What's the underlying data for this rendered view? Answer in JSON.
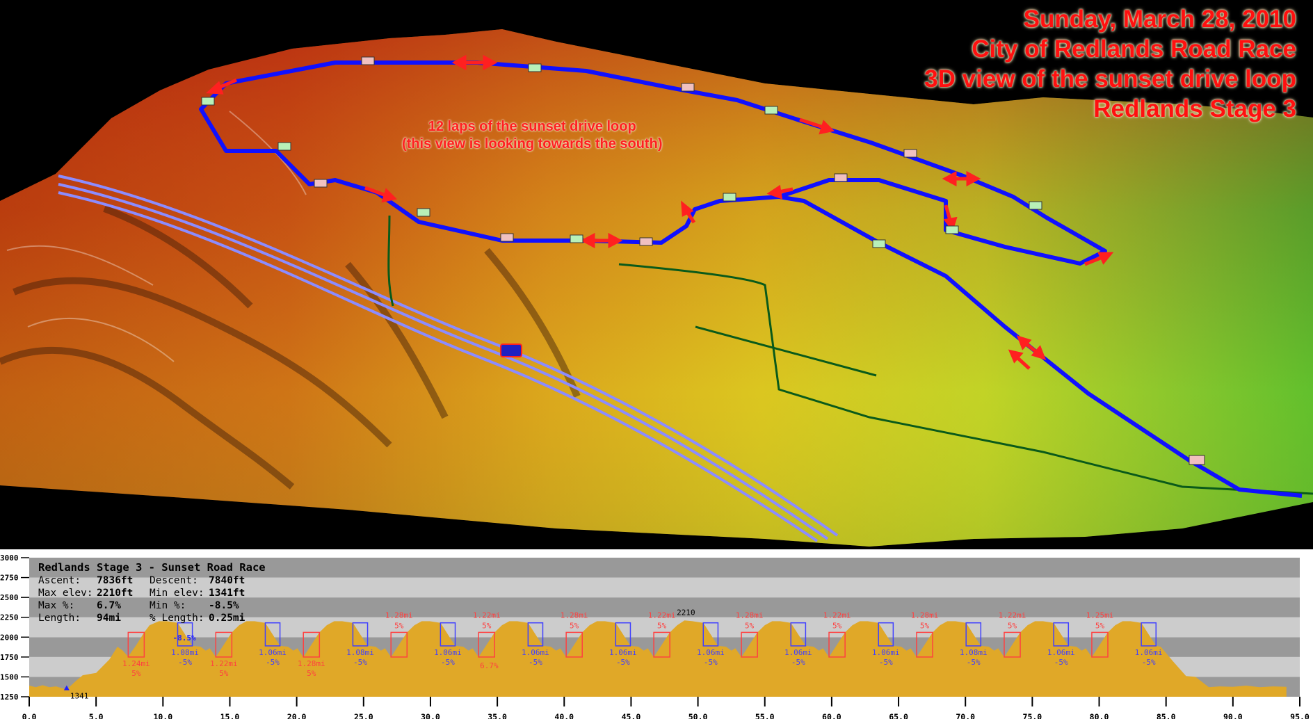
{
  "map": {
    "title_lines": [
      "Sunday, March 28, 2010",
      "City of Redlands Road Race",
      "3D view of the sunset drive loop",
      "Redlands Stage 3"
    ],
    "annotation_lines": [
      "12 laps of the sunset drive loop",
      "(this view is looking towards the south)"
    ],
    "colors": {
      "title": "#ff1010",
      "route": "#1010ff",
      "arrows": "#ff2020",
      "freeway": "#8c8cff",
      "boundary": "#0a5a1a"
    }
  },
  "info": {
    "title": "Redlands Stage 3 - Sunset Road Race",
    "rows": [
      {
        "l1": "Ascent:",
        "v1": "7836ft",
        "l2": "Descent:",
        "v2": "7840ft"
      },
      {
        "l1": "Max elev:",
        "v1": "2210ft",
        "l2": "Min elev:",
        "v2": "1341ft"
      },
      {
        "l1": "Max %:",
        "v1": "6.7%",
        "l2": "Min %:",
        "v2": "-8.5%"
      },
      {
        "l1": "Length:",
        "v1": "94mi",
        "l2": "% Length:",
        "v2": "0.25mi"
      }
    ]
  },
  "chart_data": {
    "type": "area",
    "xlim": [
      0,
      95
    ],
    "ylim": [
      1250,
      3000
    ],
    "xticks": [
      "0.0",
      "5.0",
      "10.0",
      "15.0",
      "20.0",
      "25.0",
      "30.0",
      "35.0",
      "40.0",
      "45.0",
      "50.0",
      "55.0",
      "60.0",
      "65.0",
      "70.0",
      "75.0",
      "80.0",
      "85.0",
      "90.0",
      "95.0"
    ],
    "yticks": [
      "1250",
      "1500",
      "1750",
      "2000",
      "2250",
      "2500",
      "2750",
      "3000"
    ],
    "grid_bands": true,
    "colors": {
      "fill": "#e0a828",
      "band_dark": "#999999",
      "band_light": "#cccccc",
      "climb": "#ff4040",
      "descent": "#4040ff"
    },
    "profile": [
      [
        0,
        1390
      ],
      [
        0.5,
        1370
      ],
      [
        1,
        1395
      ],
      [
        1.5,
        1370
      ],
      [
        2,
        1380
      ],
      [
        2.8,
        1341
      ],
      [
        3.5,
        1450
      ],
      [
        4,
        1520
      ],
      [
        5,
        1550
      ],
      [
        6,
        1720
      ],
      [
        6.6,
        1880
      ],
      [
        7.0,
        1830
      ],
      [
        7.4,
        1755
      ],
      [
        8.0,
        1900
      ],
      [
        8.6,
        2060
      ],
      [
        9.0,
        2150
      ],
      [
        9.7,
        2200
      ],
      [
        10.3,
        2200
      ],
      [
        11.1,
        2180
      ],
      [
        12.2,
        1890
      ],
      [
        12.8,
        1880
      ],
      [
        13.2,
        1830
      ],
      [
        13.5,
        1860
      ],
      [
        13.95,
        1750
      ],
      [
        15.15,
        2060
      ],
      [
        15.7,
        2150
      ],
      [
        16.25,
        2200
      ],
      [
        16.85,
        2200
      ],
      [
        17.65,
        2180
      ],
      [
        18.75,
        1890
      ],
      [
        19.35,
        1880
      ],
      [
        19.75,
        1830
      ],
      [
        20.05,
        1860
      ],
      [
        20.5,
        1750
      ],
      [
        21.7,
        2060
      ],
      [
        22.25,
        2150
      ],
      [
        22.8,
        2200
      ],
      [
        23.4,
        2200
      ],
      [
        24.2,
        2180
      ],
      [
        25.3,
        1890
      ],
      [
        25.9,
        1880
      ],
      [
        26.3,
        1830
      ],
      [
        26.6,
        1860
      ],
      [
        27.05,
        1750
      ],
      [
        28.25,
        2060
      ],
      [
        28.8,
        2150
      ],
      [
        29.35,
        2200
      ],
      [
        29.95,
        2200
      ],
      [
        30.75,
        2180
      ],
      [
        31.85,
        1890
      ],
      [
        32.45,
        1880
      ],
      [
        32.85,
        1830
      ],
      [
        33.15,
        1860
      ],
      [
        33.6,
        1750
      ],
      [
        34.8,
        2060
      ],
      [
        35.35,
        2150
      ],
      [
        35.9,
        2200
      ],
      [
        36.5,
        2200
      ],
      [
        37.3,
        2180
      ],
      [
        38.4,
        1890
      ],
      [
        39.0,
        1880
      ],
      [
        39.4,
        1830
      ],
      [
        39.7,
        1860
      ],
      [
        40.15,
        1750
      ],
      [
        41.35,
        2060
      ],
      [
        41.9,
        2150
      ],
      [
        42.45,
        2200
      ],
      [
        43.05,
        2200
      ],
      [
        43.85,
        2180
      ],
      [
        44.95,
        1890
      ],
      [
        45.55,
        1880
      ],
      [
        45.95,
        1830
      ],
      [
        46.25,
        1860
      ],
      [
        46.7,
        1750
      ],
      [
        47.9,
        2060
      ],
      [
        48.45,
        2150
      ],
      [
        49.0,
        2210
      ],
      [
        49.6,
        2200
      ],
      [
        50.4,
        2180
      ],
      [
        51.5,
        1890
      ],
      [
        52.1,
        1880
      ],
      [
        52.5,
        1830
      ],
      [
        52.8,
        1860
      ],
      [
        53.25,
        1750
      ],
      [
        54.45,
        2060
      ],
      [
        55.0,
        2150
      ],
      [
        55.55,
        2200
      ],
      [
        56.15,
        2200
      ],
      [
        56.95,
        2180
      ],
      [
        58.05,
        1890
      ],
      [
        58.65,
        1880
      ],
      [
        59.05,
        1830
      ],
      [
        59.35,
        1860
      ],
      [
        59.8,
        1750
      ],
      [
        61.0,
        2060
      ],
      [
        61.55,
        2150
      ],
      [
        62.1,
        2200
      ],
      [
        62.7,
        2200
      ],
      [
        63.5,
        2180
      ],
      [
        64.6,
        1890
      ],
      [
        65.2,
        1880
      ],
      [
        65.6,
        1830
      ],
      [
        65.9,
        1860
      ],
      [
        66.35,
        1750
      ],
      [
        67.55,
        2060
      ],
      [
        68.1,
        2150
      ],
      [
        68.65,
        2200
      ],
      [
        69.25,
        2200
      ],
      [
        70.05,
        2180
      ],
      [
        71.15,
        1890
      ],
      [
        71.75,
        1880
      ],
      [
        72.15,
        1830
      ],
      [
        72.45,
        1860
      ],
      [
        72.9,
        1750
      ],
      [
        74.1,
        2060
      ],
      [
        74.65,
        2150
      ],
      [
        75.2,
        2200
      ],
      [
        75.8,
        2200
      ],
      [
        76.6,
        2180
      ],
      [
        77.7,
        1890
      ],
      [
        78.3,
        1880
      ],
      [
        78.7,
        1830
      ],
      [
        79.0,
        1860
      ],
      [
        79.45,
        1750
      ],
      [
        80.65,
        2060
      ],
      [
        81.2,
        2150
      ],
      [
        81.75,
        2200
      ],
      [
        82.35,
        2200
      ],
      [
        83.15,
        2180
      ],
      [
        84.25,
        1890
      ],
      [
        84.6,
        1880
      ],
      [
        85.5,
        1700
      ],
      [
        86.5,
        1510
      ],
      [
        87.2,
        1500
      ],
      [
        88.2,
        1370
      ],
      [
        89,
        1380
      ],
      [
        90,
        1375
      ],
      [
        91,
        1390
      ],
      [
        92,
        1370
      ],
      [
        93,
        1380
      ],
      [
        94,
        1375
      ]
    ],
    "climbs": [
      {
        "start": 7.4,
        "end": 8.6,
        "low": 1750,
        "high": 2060,
        "dist": "1.24mi",
        "grade": "5%"
      },
      {
        "start": 13.95,
        "end": 15.15,
        "low": 1750,
        "high": 2060,
        "dist": "1.22mi",
        "grade": "5%"
      },
      {
        "start": 20.5,
        "end": 21.7,
        "low": 1750,
        "high": 2060,
        "dist": "1.28mi",
        "grade": "5%"
      },
      {
        "start": 27.05,
        "end": 28.25,
        "low": 1750,
        "high": 2060,
        "dist": "1.28mi",
        "grade": "5%"
      },
      {
        "start": 33.6,
        "end": 34.8,
        "low": 1750,
        "high": 2060,
        "dist": "1.22mi",
        "grade": "5%"
      },
      {
        "start": 40.15,
        "end": 41.35,
        "low": 1750,
        "high": 2060,
        "dist": "1.28mi",
        "grade": "5%"
      },
      {
        "start": 46.7,
        "end": 47.9,
        "low": 1750,
        "high": 2060,
        "dist": "1.22mi",
        "grade": "5%"
      },
      {
        "start": 53.25,
        "end": 54.45,
        "low": 1750,
        "high": 2060,
        "dist": "1.28mi",
        "grade": "5%"
      },
      {
        "start": 59.8,
        "end": 61.0,
        "low": 1750,
        "high": 2060,
        "dist": "1.22mi",
        "grade": "5%"
      },
      {
        "start": 66.35,
        "end": 67.55,
        "low": 1750,
        "high": 2060,
        "dist": "1.28mi",
        "grade": "5%"
      },
      {
        "start": 72.9,
        "end": 74.1,
        "low": 1750,
        "high": 2060,
        "dist": "1.22mi",
        "grade": "5%"
      },
      {
        "start": 79.45,
        "end": 80.65,
        "low": 1750,
        "high": 2060,
        "dist": "1.25mi",
        "grade": "5%"
      }
    ],
    "descents": [
      {
        "start": 11.1,
        "end": 12.2,
        "low": 1890,
        "high": 2180,
        "dist": "1.08mi",
        "grade": "-5%"
      },
      {
        "start": 17.65,
        "end": 18.75,
        "low": 1890,
        "high": 2180,
        "dist": "1.06mi",
        "grade": "-5%"
      },
      {
        "start": 24.2,
        "end": 25.3,
        "low": 1890,
        "high": 2180,
        "dist": "1.08mi",
        "grade": "-5%"
      },
      {
        "start": 30.75,
        "end": 31.85,
        "low": 1890,
        "high": 2180,
        "dist": "1.06mi",
        "grade": "-5%"
      },
      {
        "start": 37.3,
        "end": 38.4,
        "low": 1890,
        "high": 2180,
        "dist": "1.06mi",
        "grade": "-5%"
      },
      {
        "start": 43.85,
        "end": 44.95,
        "low": 1890,
        "high": 2180,
        "dist": "1.06mi",
        "grade": "-5%"
      },
      {
        "start": 50.4,
        "end": 51.5,
        "low": 1890,
        "high": 2180,
        "dist": "1.06mi",
        "grade": "-5%"
      },
      {
        "start": 56.95,
        "end": 58.05,
        "low": 1890,
        "high": 2180,
        "dist": "1.06mi",
        "grade": "-5%"
      },
      {
        "start": 63.5,
        "end": 64.6,
        "low": 1890,
        "high": 2180,
        "dist": "1.06mi",
        "grade": "-5%"
      },
      {
        "start": 70.05,
        "end": 71.15,
        "low": 1890,
        "high": 2180,
        "dist": "1.08mi",
        "grade": "-5%"
      },
      {
        "start": 76.6,
        "end": 77.7,
        "low": 1890,
        "high": 2180,
        "dist": "1.06mi",
        "grade": "-5%"
      },
      {
        "start": 83.15,
        "end": 84.25,
        "low": 1890,
        "high": 2180,
        "dist": "1.06mi",
        "grade": "-5%"
      }
    ],
    "annotations": [
      {
        "text": "2210",
        "x": 49.0,
        "y": 2210,
        "kind": "max"
      },
      {
        "text": "1341",
        "x": 2.8,
        "y": 1341,
        "kind": "min"
      },
      {
        "text": "-8.5%",
        "x": 11.6,
        "y": 1960,
        "kind": "min-grade"
      },
      {
        "text": "6.7%",
        "x": 33.7,
        "y": 1740,
        "kind": "max-grade"
      }
    ]
  }
}
